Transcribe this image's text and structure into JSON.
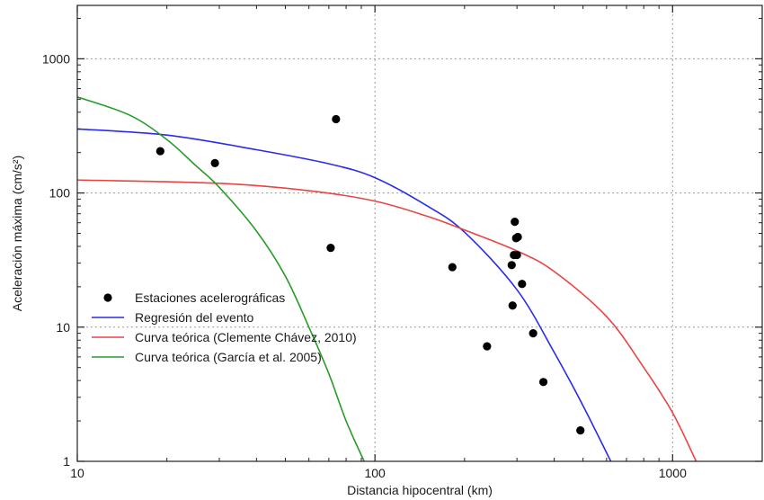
{
  "chart_data": {
    "type": "scatter",
    "xscale": "log",
    "yscale": "log",
    "xlim": [
      10,
      2000
    ],
    "ylim": [
      1,
      2500
    ],
    "xlabel": "Distancia hipocentral (km)",
    "ylabel": "Aceleración máxima (cm/s²)",
    "x_ticks": [
      {
        "value": 10,
        "label": "10"
      },
      {
        "value": 100,
        "label": "100"
      },
      {
        "value": 1000,
        "label": "1000"
      }
    ],
    "y_ticks": [
      {
        "value": 1,
        "label": "1"
      },
      {
        "value": 10,
        "label": "10"
      },
      {
        "value": 100,
        "label": "100"
      },
      {
        "value": 1000,
        "label": "1000"
      }
    ],
    "grid": true,
    "legend_position": "lower-left",
    "series": [
      {
        "name": "Estaciones acelerográficas",
        "kind": "points",
        "color": "#000000",
        "x": [
          19,
          29,
          71,
          74,
          182,
          238,
          288,
          290,
          293,
          295,
          298,
          300,
          302,
          312,
          340,
          368,
          490
        ],
        "y": [
          205,
          167,
          39,
          355,
          28,
          7.2,
          29,
          14.5,
          34.5,
          61,
          46,
          34.5,
          47,
          21,
          9,
          3.9,
          1.7
        ]
      },
      {
        "name": "Regresión del evento",
        "kind": "curve",
        "color": "#2b2be8",
        "x": [
          10,
          20,
          40,
          70,
          100,
          150,
          200,
          300,
          400,
          500,
          620
        ],
        "y": [
          300,
          270,
          210,
          165,
          130,
          80,
          51,
          19,
          6.5,
          2.6,
          1.0
        ]
      },
      {
        "name": "Curva teórica (Clemente Chávez, 2010)",
        "kind": "curve",
        "color": "#e84444",
        "x": [
          10,
          30,
          60,
          100,
          150,
          200,
          300,
          400,
          600,
          800,
          1000,
          1200
        ],
        "y": [
          125,
          118,
          104,
          87,
          67,
          53,
          37,
          26,
          12,
          5.0,
          2.3,
          1.0
        ]
      },
      {
        "name": "Curva teórica (García et al. 2005)",
        "kind": "curve",
        "color": "#2a9a2a",
        "x": [
          10,
          15,
          20,
          25,
          30,
          40,
          50,
          60,
          70,
          80,
          92
        ],
        "y": [
          520,
          380,
          250,
          160,
          110,
          52,
          24,
          10,
          4.5,
          2.0,
          1.0
        ]
      }
    ]
  }
}
